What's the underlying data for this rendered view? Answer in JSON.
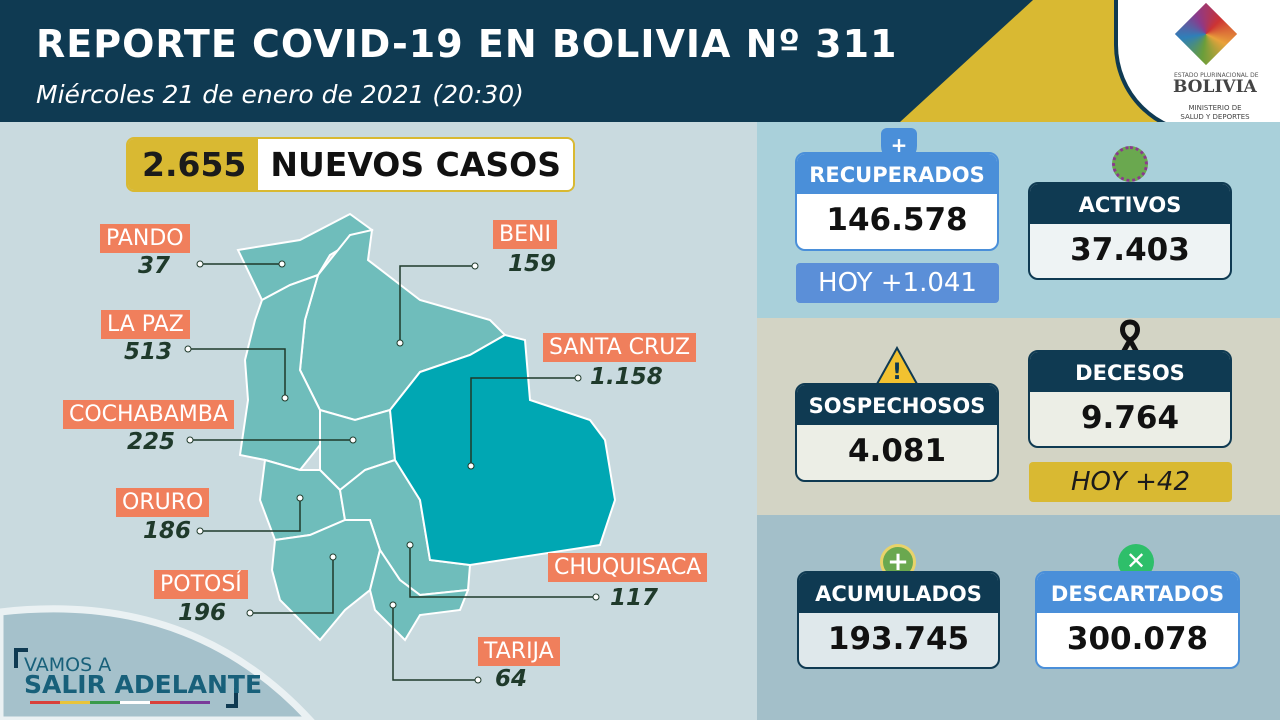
{
  "header": {
    "title": "REPORTE COVID-19 EN BOLIVIA Nº 311",
    "subtitle": "Miércoles 21 de enero de 2021 (20:30)"
  },
  "logo": {
    "line1": "ESTADO PLURINACIONAL DE",
    "line2": "BOLIVIA",
    "line3": "MINISTERIO DE SALUD Y DEPORTES"
  },
  "new_cases": {
    "value": "2.655",
    "label": "NUEVOS CASOS"
  },
  "departments": [
    {
      "name": "PANDO",
      "value": "37"
    },
    {
      "name": "BENI",
      "value": "159"
    },
    {
      "name": "LA PAZ",
      "value": "513"
    },
    {
      "name": "SANTA CRUZ",
      "value": "1.158"
    },
    {
      "name": "COCHABAMBA",
      "value": "225"
    },
    {
      "name": "ORURO",
      "value": "186"
    },
    {
      "name": "CHUQUISACA",
      "value": "117"
    },
    {
      "name": "POTOSÍ",
      "value": "196"
    },
    {
      "name": "TARIJA",
      "value": "64"
    }
  ],
  "stats": {
    "recuperados": {
      "label": "RECUPERADOS",
      "value": "146.578",
      "today": "HOY +1.041"
    },
    "activos": {
      "label": "ACTIVOS",
      "value": "37.403"
    },
    "sospechosos": {
      "label": "SOSPECHOSOS",
      "value": "4.081"
    },
    "decesos": {
      "label": "DECESOS",
      "value": "9.764",
      "today": "HOY +42"
    },
    "acumulados": {
      "label": "ACUMULADOS",
      "value": "193.745"
    },
    "descartados": {
      "label": "DESCARTADOS",
      "value": "300.078"
    }
  },
  "branding": {
    "line1": "VAMOS A",
    "line2": "SALIR ADELANTE"
  },
  "colors": {
    "navy": "#0f3a52",
    "yellow": "#d9b932",
    "blue": "#4a8fd9",
    "orange": "#f07f5c",
    "map": "#6fbdbb",
    "santa_cruz": "#00a7b3"
  }
}
